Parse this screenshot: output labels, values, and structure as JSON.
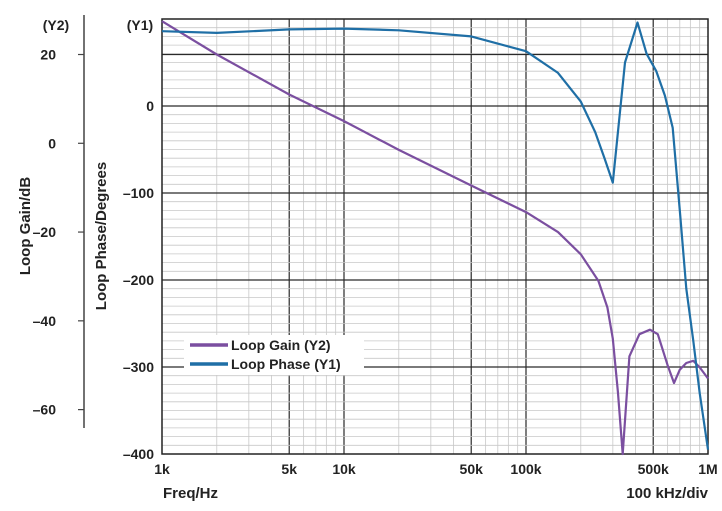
{
  "chart_data": {
    "type": "line",
    "x_scale": "log",
    "xlim": [
      1000,
      1000000
    ],
    "x_ticks": [
      {
        "value": 1000,
        "label": "1k"
      },
      {
        "value": 5000,
        "label": "5k"
      },
      {
        "value": 10000,
        "label": "10k"
      },
      {
        "value": 50000,
        "label": "50k"
      },
      {
        "value": 100000,
        "label": "100k"
      },
      {
        "value": 500000,
        "label": "500k"
      },
      {
        "value": 1000000,
        "label": "1M"
      }
    ],
    "xlabel": "Freq/Hz",
    "x_note": "100 kHz/div",
    "y1": {
      "tag": "(Y1)",
      "label": "Loop Phase/Degrees",
      "lim": [
        -400,
        100
      ],
      "ticks": [
        0,
        -100,
        -200,
        -300,
        -400
      ],
      "tick_labels": [
        "0",
        "–100",
        "–200",
        "–300",
        "–400"
      ]
    },
    "y2": {
      "tag": "(Y2)",
      "label": "Loop Gain/dB",
      "lim": [
        -70,
        28
      ],
      "ticks": [
        20,
        0,
        -20,
        -40,
        -60
      ],
      "tick_labels": [
        "20",
        "0",
        "–20",
        "–40",
        "–60"
      ]
    },
    "grid": true,
    "legend_position": "lower-left",
    "series": [
      {
        "name": "Loop Gain (Y2)",
        "axis": "y2",
        "color": "#7b4fa0",
        "points": [
          [
            1000,
            27.5
          ],
          [
            2000,
            20.0
          ],
          [
            5000,
            11.0
          ],
          [
            10000,
            5.0
          ],
          [
            20000,
            -1.5
          ],
          [
            50000,
            -9.5
          ],
          [
            100000,
            -15.5
          ],
          [
            150000,
            -20.0
          ],
          [
            200000,
            -25.0
          ],
          [
            250000,
            -31.0
          ],
          [
            280000,
            -37.0
          ],
          [
            300000,
            -44.0
          ],
          [
            320000,
            -56.0
          ],
          [
            340000,
            -70.0
          ],
          [
            370000,
            -48.0
          ],
          [
            420000,
            -43.0
          ],
          [
            480000,
            -42.0
          ],
          [
            530000,
            -43.0
          ],
          [
            600000,
            -50.0
          ],
          [
            650000,
            -54.0
          ],
          [
            700000,
            -51.0
          ],
          [
            760000,
            -49.5
          ],
          [
            830000,
            -49.0
          ],
          [
            900000,
            -50.5
          ],
          [
            1000000,
            -53.0
          ]
        ]
      },
      {
        "name": "Loop Phase (Y1)",
        "axis": "y1",
        "color": "#1f6fa6",
        "points": [
          [
            1000,
            86
          ],
          [
            2000,
            84
          ],
          [
            5000,
            88
          ],
          [
            10000,
            89
          ],
          [
            20000,
            87
          ],
          [
            50000,
            80
          ],
          [
            100000,
            63
          ],
          [
            150000,
            38
          ],
          [
            200000,
            5
          ],
          [
            240000,
            -30
          ],
          [
            270000,
            -60
          ],
          [
            300000,
            -88
          ],
          [
            350000,
            50
          ],
          [
            410000,
            96
          ],
          [
            460000,
            60
          ],
          [
            520000,
            40
          ],
          [
            580000,
            12
          ],
          [
            640000,
            -25
          ],
          [
            700000,
            -120
          ],
          [
            760000,
            -210
          ],
          [
            830000,
            -270
          ],
          [
            900000,
            -330
          ],
          [
            1000000,
            -395
          ]
        ]
      }
    ]
  }
}
